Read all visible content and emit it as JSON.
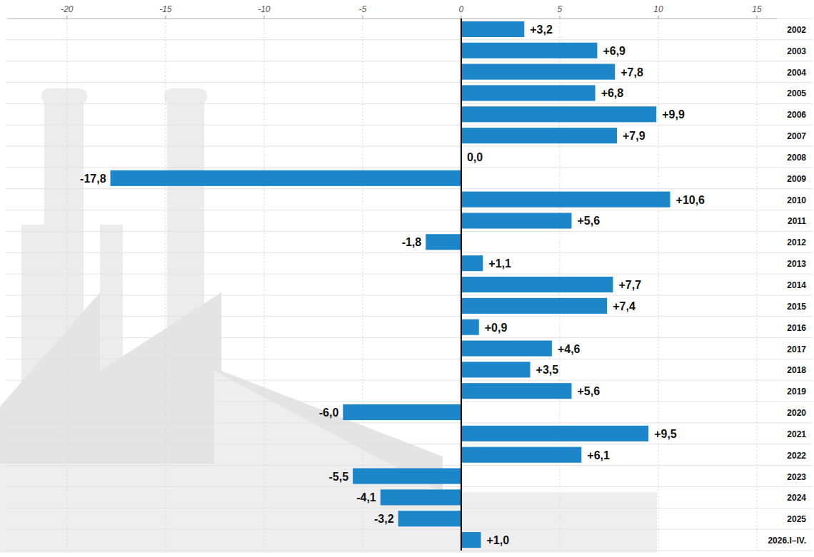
{
  "chart_data": {
    "type": "bar",
    "orientation": "horizontal",
    "categories": [
      "2002",
      "2003",
      "2004",
      "2005",
      "2006",
      "2007",
      "2008",
      "2009",
      "2010",
      "2011",
      "2012",
      "2013",
      "2014",
      "2015",
      "2016",
      "2017",
      "2018",
      "2019",
      "2020",
      "2021",
      "2022",
      "2023",
      "2024",
      "2025",
      "2026.I–IV."
    ],
    "values": [
      3.2,
      6.9,
      7.8,
      6.8,
      9.9,
      7.9,
      0.0,
      -17.8,
      10.6,
      5.6,
      -1.8,
      1.1,
      7.7,
      7.4,
      0.9,
      4.6,
      3.5,
      5.6,
      -6.0,
      9.5,
      6.1,
      -5.5,
      -4.1,
      -3.2,
      1.0
    ],
    "value_labels": [
      "+3,2",
      "+6,9",
      "+7,8",
      "+6,8",
      "+9,9",
      "+7,9",
      "0,0",
      "-17,8",
      "+10,6",
      "+5,6",
      "-1,8",
      "+1,1",
      "+7,7",
      "+7,4",
      "+0,9",
      "+4,6",
      "+3,5",
      "+5,6",
      "-6,0",
      "+9,5",
      "+6,1",
      "-5,5",
      "-4,1",
      "-3,2",
      "+1,0"
    ],
    "color": "#1c86c8",
    "xlim": [
      -23,
      16
    ],
    "xticks": [
      -20,
      -15,
      -10,
      -5,
      0,
      5,
      10,
      15
    ],
    "grid": true,
    "data_labels": true
  }
}
